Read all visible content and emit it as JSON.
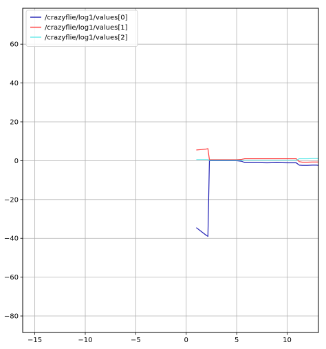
{
  "chart_data": {
    "type": "line",
    "title": "",
    "xlabel": "",
    "ylabel": "",
    "xlim": [
      -16.2,
      13.1
    ],
    "ylim": [
      -88.5,
      78.5
    ],
    "xticks": [
      -15,
      -10,
      -5,
      0,
      5,
      10
    ],
    "yticks": [
      -80,
      -60,
      -40,
      -20,
      0,
      20,
      40,
      60
    ],
    "xtick_labels": [
      "−15",
      "−10",
      "−5",
      "0",
      "5",
      "10"
    ],
    "ytick_labels": [
      "−80",
      "−60",
      "−40",
      "−20",
      "0",
      "20",
      "40",
      "60"
    ],
    "grid": true,
    "legend_position": "top-left",
    "series": [
      {
        "name": "/crazyflie/log1/values[0]",
        "color": "#1f1fb4",
        "x": [
          1.0,
          1.5,
          2.0,
          2.15,
          2.3,
          3.0,
          4.0,
          5.0,
          5.5,
          5.8,
          6.0,
          7.0,
          8.0,
          9.0,
          10.0,
          10.9,
          11.2,
          11.5,
          12.0,
          12.5,
          12.9,
          13.1
        ],
        "y": [
          -34.5,
          -36.5,
          -38.5,
          -39.0,
          0.0,
          0.0,
          0.0,
          0.0,
          -0.3,
          -1.0,
          -1.0,
          -1.0,
          -1.1,
          -1.0,
          -1.1,
          -1.1,
          -2.3,
          -2.4,
          -2.4,
          -2.3,
          -2.3,
          -2.4
        ]
      },
      {
        "name": "/crazyflie/log1/values[1]",
        "color": "#ff3b3b",
        "x": [
          1.0,
          1.5,
          2.0,
          2.15,
          2.3,
          3.0,
          4.0,
          5.0,
          5.5,
          5.8,
          6.0,
          7.0,
          8.0,
          9.0,
          10.0,
          10.9,
          11.2,
          11.5,
          12.0,
          12.5,
          12.9,
          13.1
        ],
        "y": [
          5.5,
          5.7,
          6.0,
          6.2,
          0.5,
          0.5,
          0.5,
          0.5,
          0.7,
          1.0,
          1.0,
          1.0,
          1.0,
          1.0,
          1.0,
          1.0,
          -0.5,
          -0.8,
          -0.8,
          -0.7,
          -0.7,
          -0.7
        ]
      },
      {
        "name": "/crazyflie/log1/values[2]",
        "color": "#66e8e8",
        "x": [
          1.0,
          1.5,
          2.0,
          2.15,
          2.3,
          3.0,
          4.0,
          5.0,
          5.5,
          5.8,
          6.0,
          7.0,
          8.0,
          9.0,
          10.0,
          10.9,
          11.2,
          11.5,
          12.0,
          12.5,
          12.9,
          13.1
        ],
        "y": [
          0.6,
          0.6,
          0.6,
          0.6,
          0.2,
          0.2,
          0.2,
          0.2,
          0.2,
          0.2,
          0.2,
          0.2,
          0.2,
          0.2,
          0.2,
          0.2,
          1.0,
          1.0,
          1.0,
          1.1,
          1.1,
          1.1
        ]
      }
    ]
  }
}
